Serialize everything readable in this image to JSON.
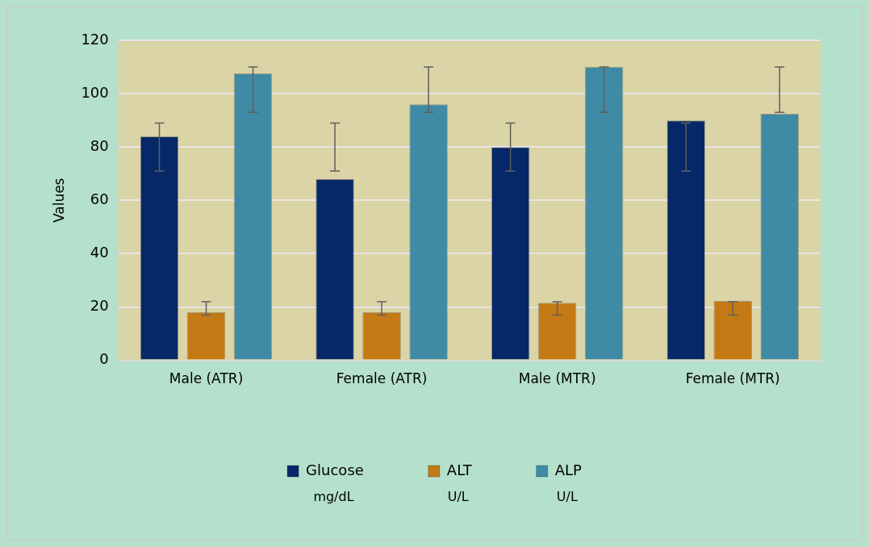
{
  "chart_data": {
    "type": "bar",
    "ylabel": "Values",
    "categories": [
      "Male (ATR)",
      "Female (ATR)",
      "Male (MTR)",
      "Female (MTR)"
    ],
    "series": [
      {
        "name": "Glucose",
        "color": "#062868",
        "values": [
          84,
          68,
          80,
          90
        ],
        "errors": [
          [
            71,
            89
          ],
          [
            71,
            89
          ],
          [
            71,
            89
          ],
          [
            71,
            89
          ]
        ]
      },
      {
        "name": "ALT",
        "color": "#c47a14",
        "values": [
          18,
          18,
          21.6,
          22.3
        ],
        "errors": [
          [
            17,
            22
          ],
          [
            17,
            22
          ],
          [
            17,
            22
          ],
          [
            17,
            22
          ]
        ]
      },
      {
        "name": "ALP",
        "color": "#3f8aa4",
        "values": [
          107.6,
          96,
          110,
          92.5
        ],
        "errors": [
          [
            93,
            110
          ],
          [
            93,
            110
          ],
          [
            93,
            110
          ],
          [
            93,
            110
          ]
        ]
      }
    ],
    "annotations": [
      "mg/dL",
      "U/L",
      "U/L"
    ],
    "ylim": [
      0,
      120
    ],
    "yticks": [
      0,
      20,
      40,
      60,
      80,
      100,
      120
    ],
    "grid": "y",
    "legend": "bottom"
  }
}
